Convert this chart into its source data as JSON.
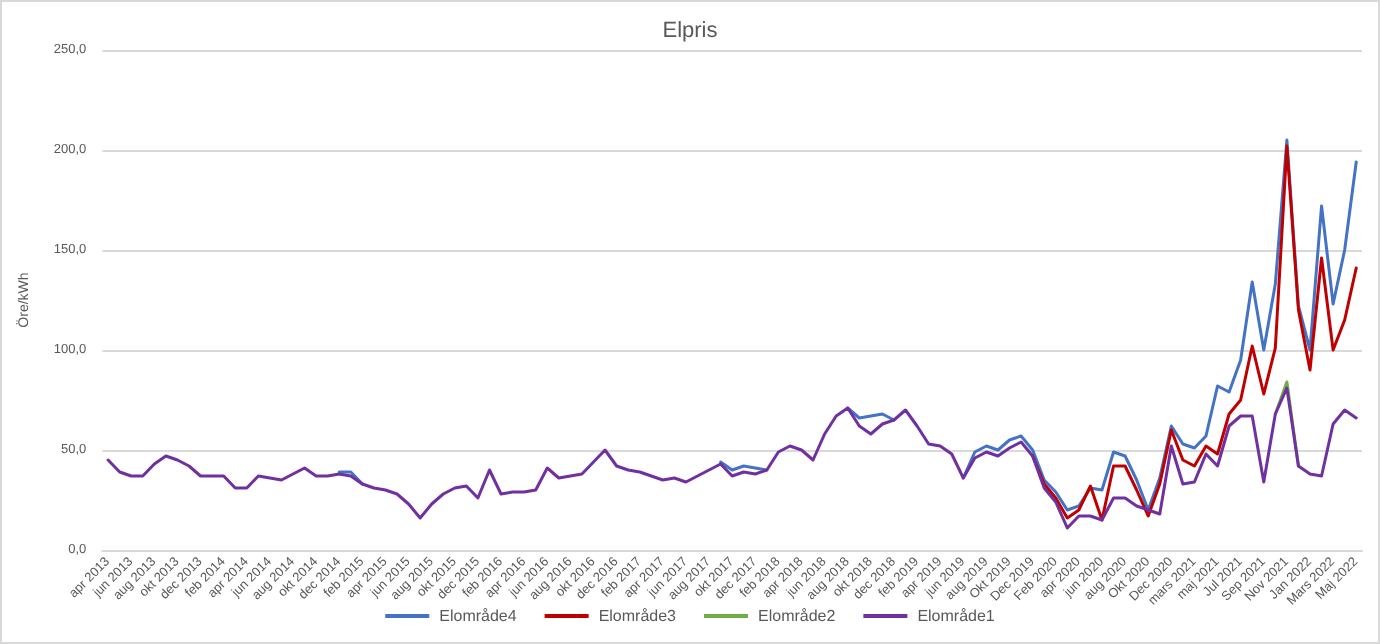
{
  "chart_data": {
    "type": "line",
    "title": "Elpris",
    "ylabel": "Öre/kWh",
    "categories": [
      "apr 2013",
      null,
      "jun 2013",
      null,
      "aug 2013",
      null,
      "okt 2013",
      null,
      "dec 2013",
      null,
      "feb 2014",
      null,
      "apr 2014",
      null,
      "jun 2014",
      null,
      "aug 2014",
      null,
      "okt 2014",
      null,
      "dec 2014",
      null,
      "feb 2015",
      null,
      "apr 2015",
      null,
      "jun 2015",
      null,
      "aug 2015",
      null,
      "okt 2015",
      null,
      "dec 2015",
      null,
      "feb 2016",
      null,
      "apr 2016",
      null,
      "jun 2016",
      null,
      "aug 2016",
      null,
      "okt 2016",
      null,
      "dec 2016",
      null,
      "feb 2017",
      null,
      "apr 2017",
      null,
      "jun 2017",
      null,
      "aug 2017",
      null,
      "okt 2017",
      null,
      "dec 2017",
      null,
      "feb 2018",
      null,
      "apr 2018",
      null,
      "jun 2018",
      null,
      "aug 2018",
      null,
      "okt 2018",
      null,
      "dec 2018",
      null,
      "feb 2019",
      null,
      "apr 2019",
      null,
      "jun 2019",
      null,
      "aug 2019",
      null,
      "Okt 2019",
      null,
      "Dec 2019",
      null,
      "Feb 2020",
      null,
      "apr 2020",
      null,
      "jun 2020",
      null,
      "aug 2020",
      null,
      "Okt 2020",
      null,
      "Dec 2020",
      null,
      "mars 2021",
      null,
      "maj 2021",
      null,
      "Jul 2021",
      null,
      "Sep 2021",
      null,
      "Nov 2021",
      null,
      "Jan 2022",
      null,
      "Mars 2022",
      null,
      "Maj 2022"
    ],
    "series": [
      {
        "name": "Elområde4",
        "color": "#4472c4",
        "values": [
          null,
          null,
          null,
          null,
          null,
          null,
          null,
          null,
          null,
          null,
          null,
          null,
          null,
          null,
          null,
          null,
          null,
          null,
          null,
          null,
          39,
          39,
          33,
          null,
          null,
          null,
          null,
          null,
          null,
          null,
          null,
          null,
          null,
          null,
          null,
          null,
          null,
          null,
          null,
          null,
          null,
          null,
          null,
          null,
          null,
          null,
          null,
          null,
          null,
          null,
          null,
          null,
          null,
          44,
          40,
          42,
          41,
          40,
          null,
          null,
          null,
          null,
          null,
          null,
          71,
          66,
          67,
          68,
          65,
          null,
          null,
          null,
          null,
          null,
          36,
          49,
          52,
          50,
          55,
          57,
          50,
          35,
          29,
          20,
          22,
          31,
          30,
          49,
          47,
          35,
          20,
          36,
          62,
          53,
          51,
          57,
          82,
          79,
          95,
          134,
          100,
          133,
          205,
          122,
          100,
          172,
          123,
          150,
          194
        ]
      },
      {
        "name": "Elområde3",
        "color": "#c00000",
        "values": [
          null,
          null,
          null,
          null,
          null,
          null,
          null,
          null,
          null,
          null,
          null,
          null,
          null,
          null,
          null,
          null,
          null,
          null,
          null,
          null,
          null,
          null,
          null,
          null,
          null,
          null,
          null,
          null,
          null,
          null,
          null,
          null,
          null,
          null,
          null,
          null,
          null,
          null,
          null,
          null,
          null,
          null,
          null,
          null,
          null,
          null,
          null,
          null,
          null,
          null,
          null,
          null,
          null,
          null,
          null,
          null,
          null,
          null,
          null,
          null,
          null,
          null,
          null,
          null,
          null,
          null,
          null,
          null,
          null,
          null,
          null,
          null,
          null,
          null,
          null,
          null,
          null,
          null,
          null,
          null,
          47,
          33,
          26,
          16,
          20,
          32,
          15,
          42,
          42,
          30,
          17,
          33,
          60,
          45,
          42,
          52,
          48,
          68,
          75,
          102,
          78,
          101,
          202,
          120,
          90,
          146,
          100,
          115,
          141
        ]
      },
      {
        "name": "Elområde2",
        "color": "#70ad47",
        "values": [
          null,
          null,
          null,
          null,
          null,
          null,
          null,
          null,
          null,
          null,
          null,
          null,
          null,
          null,
          null,
          null,
          null,
          null,
          null,
          null,
          null,
          null,
          null,
          null,
          null,
          null,
          null,
          null,
          null,
          null,
          null,
          null,
          null,
          null,
          null,
          null,
          null,
          null,
          null,
          null,
          null,
          null,
          null,
          null,
          null,
          null,
          null,
          null,
          null,
          null,
          null,
          null,
          null,
          null,
          null,
          null,
          null,
          null,
          null,
          null,
          null,
          null,
          null,
          null,
          null,
          null,
          null,
          null,
          null,
          null,
          null,
          null,
          null,
          null,
          null,
          null,
          null,
          null,
          null,
          null,
          null,
          null,
          null,
          null,
          null,
          null,
          null,
          null,
          null,
          null,
          null,
          null,
          null,
          null,
          null,
          null,
          null,
          null,
          null,
          null,
          null,
          68,
          84,
          42,
          null,
          null,
          null,
          null,
          null
        ]
      },
      {
        "name": "Elområde1",
        "color": "#7030a0",
        "values": [
          45,
          39,
          37,
          37,
          43,
          47,
          45,
          42,
          37,
          37,
          37,
          31,
          31,
          37,
          36,
          35,
          38,
          41,
          37,
          37,
          38,
          37,
          33,
          31,
          30,
          28,
          23,
          16,
          23,
          28,
          31,
          32,
          26,
          40,
          28,
          29,
          29,
          30,
          41,
          36,
          37,
          38,
          44,
          50,
          42,
          40,
          39,
          37,
          35,
          36,
          34,
          37,
          40,
          43,
          37,
          39,
          38,
          40,
          49,
          52,
          50,
          45,
          58,
          67,
          71,
          62,
          58,
          63,
          65,
          70,
          62,
          53,
          52,
          48,
          36,
          46,
          49,
          47,
          51,
          54,
          47,
          31,
          24,
          11,
          17,
          17,
          15,
          26,
          26,
          22,
          20,
          18,
          52,
          33,
          34,
          48,
          42,
          62,
          67,
          67,
          34,
          68,
          81,
          42,
          38,
          37,
          63,
          70,
          66
        ]
      }
    ],
    "ylim": [
      0,
      250
    ],
    "yticks": [
      {
        "value": 0,
        "label": "0,0"
      },
      {
        "value": 50,
        "label": "50,0"
      },
      {
        "value": 100,
        "label": "100,0"
      },
      {
        "value": 150,
        "label": "150,0"
      },
      {
        "value": 200,
        "label": "200,0"
      },
      {
        "value": 250,
        "label": "250,0"
      }
    ],
    "grid": "y",
    "legend": "bottom",
    "marker": "none",
    "line_style": "solid"
  }
}
